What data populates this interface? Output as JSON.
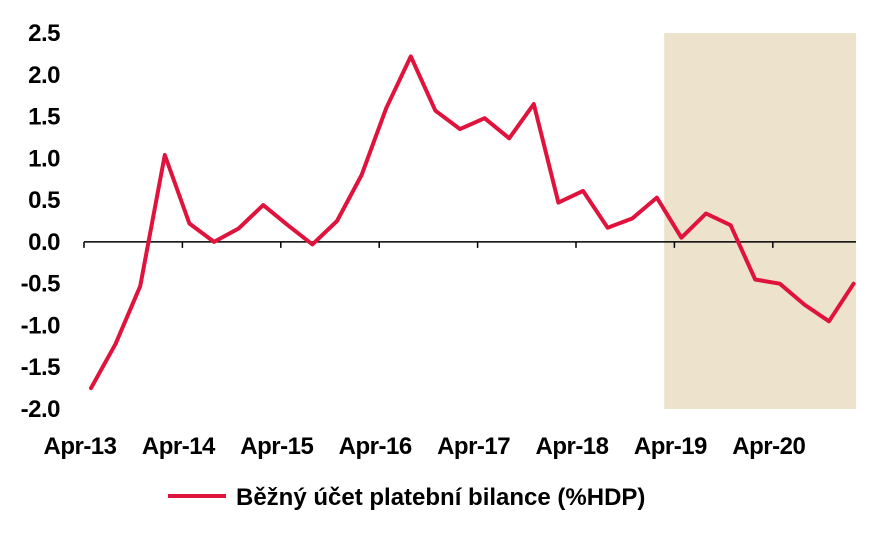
{
  "chart_data": {
    "type": "line",
    "ylim": [
      -2.0,
      2.5
    ],
    "y_ticks": [
      "2.5",
      "2.0",
      "1.5",
      "1.0",
      "0.5",
      "0.0",
      "-0.5",
      "-1.0",
      "-1.5",
      "-2.0"
    ],
    "y_tick_values": [
      2.5,
      2.0,
      1.5,
      1.0,
      0.5,
      0.0,
      -0.5,
      -1.0,
      -1.5,
      -2.0
    ],
    "x_ticks": [
      "Apr-13",
      "Apr-14",
      "Apr-15",
      "Apr-16",
      "Apr-17",
      "Apr-18",
      "Apr-19",
      "Apr-20"
    ],
    "x_tick_quarters": [
      0,
      4,
      8,
      12,
      16,
      20,
      24,
      28
    ],
    "shaded_region": {
      "from_quarter": 23.3,
      "to_quarter": 31,
      "color": "#ede3cc"
    },
    "grid": false,
    "legend_position": "bottom",
    "series": [
      {
        "name": "Běžný účet platební bilance (%HDP)",
        "color": "#e0133c",
        "values": [
          -1.75,
          -1.22,
          -0.53,
          1.04,
          0.22,
          0.0,
          0.16,
          0.44,
          0.2,
          -0.03,
          0.25,
          0.8,
          1.6,
          2.22,
          1.57,
          1.35,
          1.48,
          1.24,
          1.65,
          0.47,
          0.61,
          0.17,
          0.28,
          0.53,
          0.05,
          0.34,
          0.2,
          -0.45,
          -0.5,
          -0.75,
          -0.95,
          -0.5
        ]
      }
    ]
  }
}
